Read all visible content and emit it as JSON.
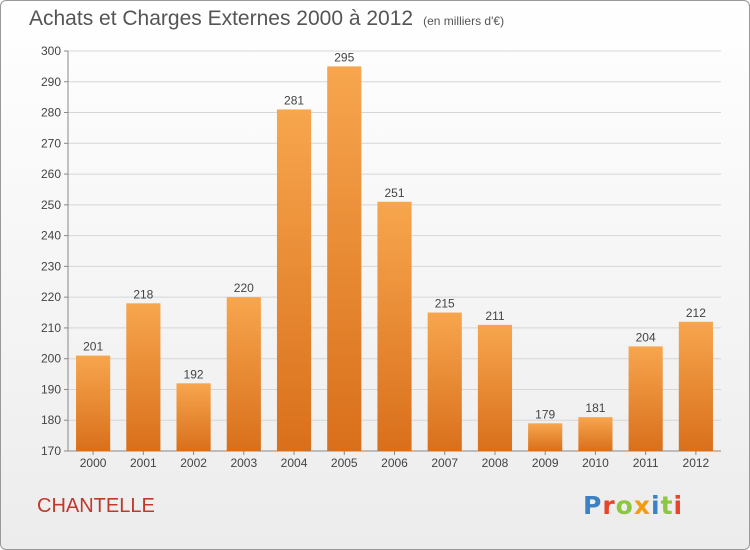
{
  "header": {
    "title": "Achats et Charges Externes 2000 à 2012",
    "subtitle": "(en milliers d'€)"
  },
  "footer": {
    "commune": "CHANTELLE",
    "logo": "Proxiti"
  },
  "colors": {
    "bar_light": "#f7a64e",
    "bar_dark": "#d96f1b",
    "commune_text": "#c0392b",
    "logo_letters": [
      "#3b82c4",
      "#e8442c",
      "#8dc63f",
      "#f39c12",
      "#3b82c4",
      "#8dc63f",
      "#e8442c"
    ]
  },
  "chart_data": {
    "type": "bar",
    "title": "Achats et Charges Externes 2000 à 2012",
    "subtitle": "(en milliers d'€)",
    "categories": [
      "2000",
      "2001",
      "2002",
      "2003",
      "2004",
      "2005",
      "2006",
      "2007",
      "2008",
      "2009",
      "2010",
      "2011",
      "2012"
    ],
    "values": [
      201,
      218,
      192,
      220,
      281,
      295,
      251,
      215,
      211,
      179,
      181,
      204,
      212
    ],
    "ylim": [
      170,
      300
    ],
    "yticks": [
      170,
      180,
      190,
      200,
      210,
      220,
      230,
      240,
      250,
      260,
      270,
      280,
      290,
      300
    ],
    "xlabel": "",
    "ylabel": "",
    "grid": true,
    "legend": "none"
  }
}
